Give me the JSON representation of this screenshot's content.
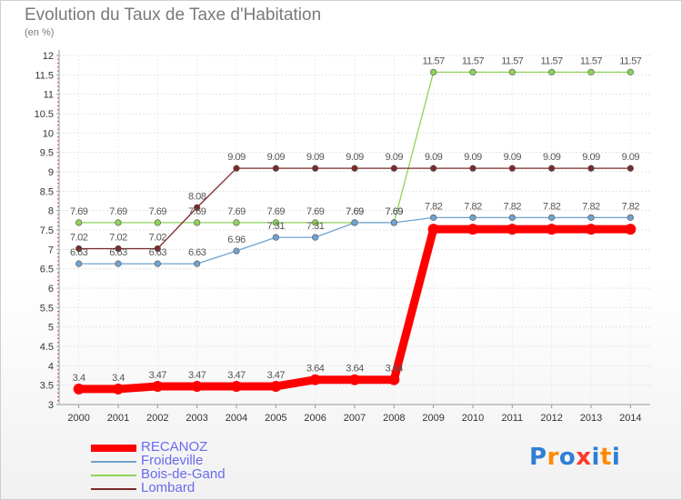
{
  "chart_data": {
    "type": "line",
    "title": "Evolution du Taux de Taxe d'Habitation",
    "subtitle": "(en %)",
    "x": [
      "2000",
      "2001",
      "2002",
      "2003",
      "2004",
      "2005",
      "2006",
      "2007",
      "2008",
      "2009",
      "2010",
      "2011",
      "2012",
      "2013",
      "2014"
    ],
    "ylim": [
      3,
      12
    ],
    "yticks": [
      "3",
      "3.5",
      "4",
      "4.5",
      "5",
      "5.5",
      "6",
      "6.5",
      "7",
      "7.5",
      "8",
      "8.5",
      "9",
      "9.5",
      "10",
      "10.5",
      "11",
      "11.5",
      "12"
    ],
    "grid": true,
    "series": [
      {
        "name": "RECANOZ",
        "color": "#ff0000",
        "values": [
          3.4,
          3.4,
          3.47,
          3.47,
          3.47,
          3.47,
          3.64,
          3.64,
          3.64,
          7.52,
          7.52,
          7.52,
          7.52,
          7.52,
          7.52
        ],
        "labels": [
          "3.4",
          "3.4",
          "3.47",
          "3.47",
          "3.47",
          "3.47",
          "3.64",
          "3.64",
          "3.64",
          "",
          "",
          "",
          "",
          "",
          ""
        ]
      },
      {
        "name": "Froideville",
        "color": "#6fa3d0",
        "values": [
          6.63,
          6.63,
          6.63,
          6.63,
          6.96,
          7.31,
          7.31,
          7.69,
          7.69,
          7.82,
          7.82,
          7.82,
          7.82,
          7.82,
          7.82
        ],
        "labels": [
          "6.63",
          "6.63",
          "6.63",
          "6.63",
          "6.96",
          "7.31",
          "7.31",
          "7.69",
          "7.69",
          "7.82",
          "7.82",
          "7.82",
          "7.82",
          "7.82",
          "7.82"
        ]
      },
      {
        "name": "Bois-de-Gand",
        "color": "#8ed35a",
        "values": [
          7.69,
          7.69,
          7.69,
          7.69,
          7.69,
          7.69,
          7.69,
          7.69,
          7.69,
          11.57,
          11.57,
          11.57,
          11.57,
          11.57,
          11.57
        ],
        "labels": [
          "7.69",
          "7.69",
          "7.69",
          "7.69",
          "7.69",
          "7.69",
          "7.69",
          "7.69",
          "7.69",
          "11.57",
          "11.57",
          "11.57",
          "11.57",
          "11.57",
          "11.57"
        ]
      },
      {
        "name": "Lombard",
        "color": "#7a2a2a",
        "values": [
          7.02,
          7.02,
          7.02,
          8.08,
          9.09,
          9.09,
          9.09,
          9.09,
          9.09,
          9.09,
          9.09,
          9.09,
          9.09,
          9.09,
          9.09
        ],
        "labels": [
          "7.02",
          "7.02",
          "7.02",
          "8.08",
          "9.09",
          "9.09",
          "9.09",
          "9.09",
          "9.09",
          "9.09",
          "9.09",
          "9.09",
          "9.09",
          "9.09",
          "9.09"
        ]
      }
    ]
  },
  "legend": {
    "items": [
      {
        "label": "RECANOZ",
        "color": "#ff0000"
      },
      {
        "label": "Froideville",
        "color": "#6fa3d0"
      },
      {
        "label": "Bois-de-Gand",
        "color": "#8ed35a"
      },
      {
        "label": "Lombard",
        "color": "#7a2a2a"
      }
    ]
  },
  "logo": {
    "text": "Proxiti",
    "colors": [
      "#2f7fd6",
      "#ff8a00",
      "#2f7fd6",
      "#ff3a2a",
      "#2f7fd6",
      "#ff8a00",
      "#2f7fd6"
    ]
  }
}
